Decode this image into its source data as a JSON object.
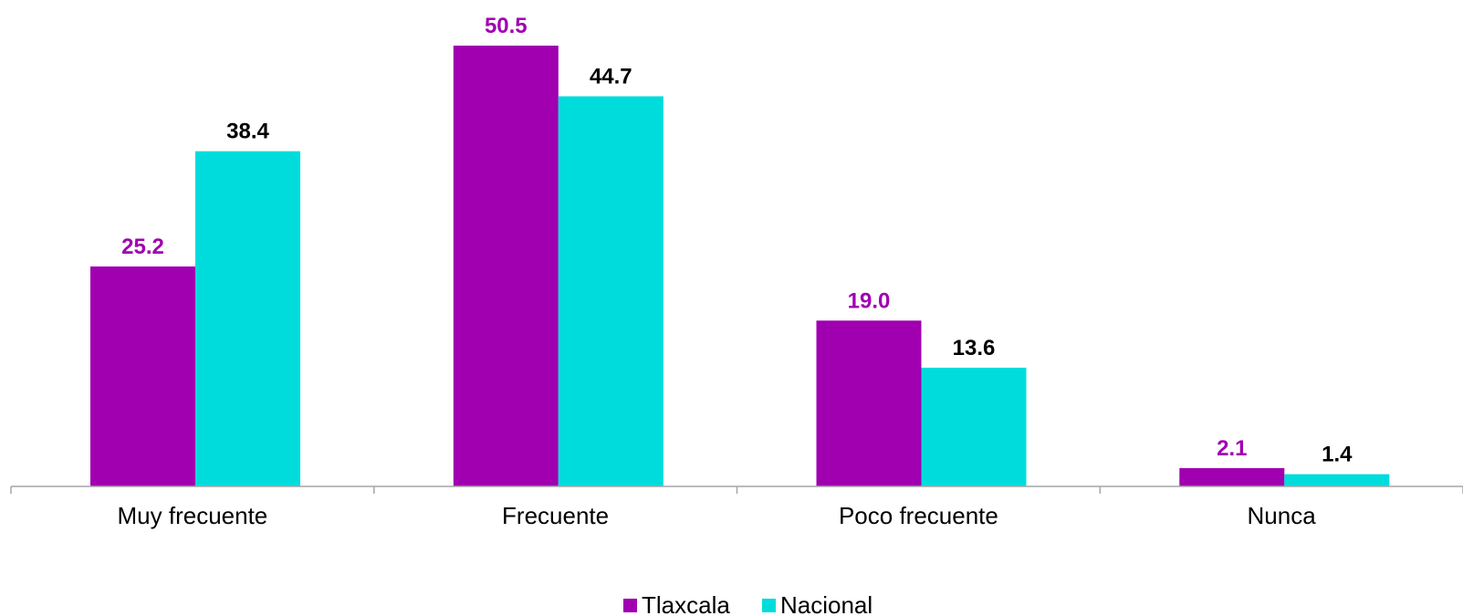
{
  "chart_data": {
    "type": "bar",
    "title": "",
    "xlabel": "",
    "ylabel": "",
    "categories": [
      "Muy frecuente",
      "Frecuente",
      "Poco frecuente",
      "Nunca"
    ],
    "series": [
      {
        "name": "Tlaxcala",
        "values": [
          25.2,
          50.5,
          19.0,
          2.1
        ],
        "labels": [
          "25.2",
          "50.5",
          "19.0",
          "2.1"
        ],
        "color": "#A000B0",
        "label_color": "#A000B0"
      },
      {
        "name": "Nacional",
        "values": [
          38.4,
          44.7,
          13.6,
          1.4
        ],
        "labels": [
          "38.4",
          "44.7",
          "13.6",
          "1.4"
        ],
        "color": "#00DCDC",
        "label_color": "#000000"
      }
    ],
    "ylim": [
      0,
      50.5
    ],
    "grid": false,
    "legend": "bottom-center",
    "axis_color": "#A6A6A6"
  }
}
